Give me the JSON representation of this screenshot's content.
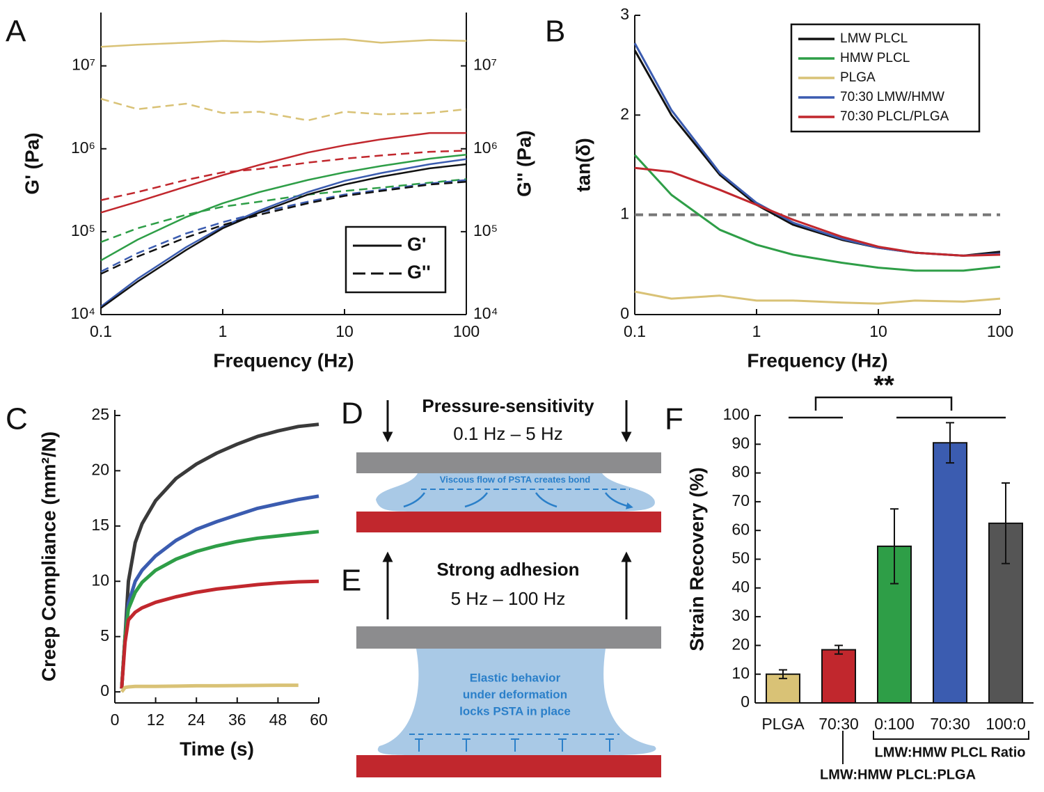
{
  "chart_data": [
    {
      "type": "line",
      "panel": "A",
      "xscale": "log",
      "yscale": "log",
      "xlabel": "Frequency (Hz)",
      "ylabel": "G' (Pa)",
      "y2label": "G'' (Pa)",
      "xlim": [
        0.1,
        100
      ],
      "xticks": [
        0.1,
        1,
        10,
        100
      ],
      "ylim": [
        10000,
        44000000
      ],
      "yticks": [
        {
          "value": 10000,
          "label": "10⁴"
        },
        {
          "value": 100000,
          "label": "10⁵"
        },
        {
          "value": 1000000,
          "label": "10⁶"
        },
        {
          "value": 10000000,
          "label": "10⁷"
        }
      ],
      "y2lim": [
        10000,
        44000000
      ],
      "y2ticks": [
        {
          "value": 10000,
          "label": "10⁴"
        },
        {
          "value": 100000,
          "label": "10⁵"
        },
        {
          "value": 1000000,
          "label": "10⁶"
        },
        {
          "value": 10000000,
          "label": "10⁷"
        }
      ],
      "x": [
        0.1,
        0.2,
        0.5,
        1,
        2,
        5,
        10,
        20,
        50,
        100
      ],
      "series": [
        {
          "color": "#d9c276",
          "dash": false,
          "values": [
            17000000,
            18000000,
            19000000,
            20000000,
            19500000,
            20500000,
            21000000,
            19000000,
            20500000,
            20000000
          ]
        },
        {
          "color": "#d9c276",
          "dash": true,
          "values": [
            4000000,
            3000000,
            3500000,
            2700000,
            2800000,
            2200000,
            2800000,
            2600000,
            2700000,
            3000000
          ]
        },
        {
          "color": "#c1272d",
          "dash": false,
          "values": [
            170000,
            230000,
            350000,
            480000,
            640000,
            900000,
            1100000,
            1300000,
            1550000,
            1550000
          ]
        },
        {
          "color": "#c1272d",
          "dash": true,
          "values": [
            240000,
            300000,
            420000,
            520000,
            570000,
            680000,
            760000,
            830000,
            920000,
            950000
          ]
        },
        {
          "color": "#2e9e47",
          "dash": false,
          "values": [
            45000,
            80000,
            150000,
            220000,
            300000,
            420000,
            520000,
            620000,
            760000,
            850000
          ]
        },
        {
          "color": "#2e9e47",
          "dash": true,
          "values": [
            75000,
            110000,
            160000,
            200000,
            230000,
            280000,
            310000,
            340000,
            390000,
            430000
          ]
        },
        {
          "color": "#3b5cb0",
          "dash": false,
          "values": [
            12500,
            27000,
            65000,
            115000,
            180000,
            300000,
            410000,
            510000,
            650000,
            750000
          ]
        },
        {
          "color": "#3b5cb0",
          "dash": true,
          "values": [
            33000,
            55000,
            95000,
            130000,
            170000,
            230000,
            280000,
            320000,
            380000,
            420000
          ]
        },
        {
          "color": "#111111",
          "dash": false,
          "values": [
            12000,
            25000,
            60000,
            110000,
            170000,
            280000,
            370000,
            460000,
            580000,
            650000
          ]
        },
        {
          "color": "#111111",
          "dash": true,
          "values": [
            31000,
            50000,
            85000,
            120000,
            160000,
            220000,
            270000,
            310000,
            370000,
            400000
          ]
        }
      ],
      "legend": [
        {
          "label": "G'",
          "dash": false
        },
        {
          "label": "G''",
          "dash": true
        }
      ],
      "legend_position": "lower right"
    },
    {
      "type": "line",
      "panel": "B",
      "xscale": "log",
      "xlabel": "Frequency (Hz)",
      "ylabel": "tan(δ)",
      "xlim": [
        0.1,
        100
      ],
      "xticks": [
        0.1,
        1,
        10,
        100
      ],
      "ylim": [
        0,
        3
      ],
      "yticks": [
        0,
        1,
        2,
        3
      ],
      "hline": 1,
      "hline_color": "#777777",
      "x": [
        0.1,
        0.2,
        0.5,
        1,
        2,
        5,
        10,
        20,
        50,
        100
      ],
      "series": [
        {
          "name": "LMW PLCL",
          "color": "#111111",
          "values": [
            2.65,
            2.0,
            1.4,
            1.1,
            0.9,
            0.75,
            0.67,
            0.62,
            0.59,
            0.63
          ]
        },
        {
          "name": "HMW PLCL",
          "color": "#2e9e47",
          "values": [
            1.6,
            1.2,
            0.85,
            0.7,
            0.6,
            0.52,
            0.47,
            0.44,
            0.44,
            0.48
          ]
        },
        {
          "name": "PLGA",
          "color": "#d9c276",
          "values": [
            0.23,
            0.16,
            0.19,
            0.14,
            0.14,
            0.12,
            0.11,
            0.14,
            0.13,
            0.16
          ]
        },
        {
          "name": "70:30 LMW/HMW",
          "color": "#3b5cb0",
          "values": [
            2.72,
            2.05,
            1.42,
            1.12,
            0.92,
            0.76,
            0.67,
            0.62,
            0.59,
            0.61
          ]
        },
        {
          "name": "70:30 PLCL/PLGA",
          "color": "#c1272d",
          "values": [
            1.47,
            1.43,
            1.25,
            1.1,
            0.95,
            0.78,
            0.68,
            0.62,
            0.59,
            0.6
          ]
        }
      ],
      "legend_position": "upper right"
    },
    {
      "type": "line",
      "panel": "C",
      "xlabel": "Time (s)",
      "ylabel": "Creep Compliance (mm²/N)",
      "xlim": [
        0,
        60
      ],
      "xticks": [
        0,
        12,
        24,
        36,
        48,
        60
      ],
      "ylim": [
        -1,
        25.5
      ],
      "yticks": [
        0,
        5,
        10,
        15,
        20,
        25
      ],
      "x": [
        2,
        3,
        4,
        6,
        8,
        12,
        18,
        24,
        30,
        36,
        42,
        48,
        54,
        60
      ],
      "series": [
        {
          "color": "#3a3a3a",
          "values": [
            0.3,
            5,
            10,
            13.5,
            15.2,
            17.3,
            19.3,
            20.6,
            21.6,
            22.4,
            23.1,
            23.6,
            24,
            24.2
          ]
        },
        {
          "color": "#3b5cb0",
          "values": [
            0.3,
            5,
            8,
            10,
            11,
            12.3,
            13.7,
            14.7,
            15.4,
            16,
            16.6,
            17,
            17.4,
            17.7
          ]
        },
        {
          "color": "#2e9e47",
          "values": [
            0.3,
            5,
            7.5,
            9,
            9.9,
            11,
            12,
            12.7,
            13.2,
            13.6,
            13.9,
            14.1,
            14.3,
            14.5
          ]
        },
        {
          "color": "#c1272d",
          "values": [
            0.3,
            4.5,
            6.5,
            7.2,
            7.6,
            8.1,
            8.6,
            9.0,
            9.3,
            9.5,
            9.7,
            9.85,
            9.95,
            10.0
          ]
        },
        {
          "color": "#d9c276",
          "values": [
            0,
            0.4,
            0.45,
            0.5,
            0.5,
            0.5,
            0.52,
            0.55,
            0.55,
            0.57,
            0.58,
            0.6,
            0.6,
            null
          ]
        }
      ]
    },
    {
      "type": "bar",
      "panel": "F",
      "ylabel": "Strain Recovery (%)",
      "ylim": [
        0,
        100
      ],
      "yticks": [
        0,
        10,
        20,
        30,
        40,
        50,
        60,
        70,
        80,
        90,
        100
      ],
      "categories": [
        "PLGA",
        "70:30",
        "0:100",
        "70:30",
        "100:0"
      ],
      "values": [
        10,
        18.5,
        54.5,
        90.5,
        62.5
      ],
      "errors": [
        1.5,
        1.5,
        13,
        7,
        14
      ],
      "colors": [
        "#d9c276",
        "#c1272d",
        "#2e9e47",
        "#3b5cb0",
        "#555555"
      ],
      "annotation": "**",
      "group_labels": [
        "LMW:HMW PLCL Ratio",
        "LMW:HMW PLCL:PLGA"
      ]
    }
  ],
  "diagrams": [
    {
      "panel": "D",
      "title": "Pressure-sensitivity",
      "subtitle": "0.1 Hz – 5 Hz",
      "note": [
        "Viscous flow of PSTA creates bond"
      ]
    },
    {
      "panel": "E",
      "title": "Strong adhesion",
      "subtitle": "5 Hz – 100 Hz",
      "note": [
        "Elastic behavior",
        "under deformation",
        "locks PSTA in place"
      ]
    }
  ]
}
